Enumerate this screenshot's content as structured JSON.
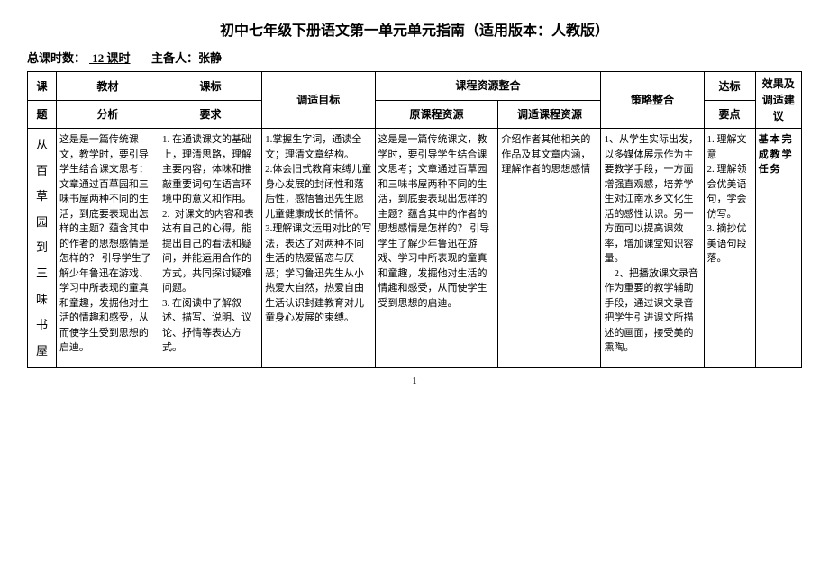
{
  "title": "初中七年级下册语文第一单元单元指南（适用版本：人教版）",
  "meta": {
    "hours_label": "总课时数：",
    "hours_value": "  12  课时",
    "author_label": "主备人：",
    "author_value": "张静"
  },
  "headers": {
    "topic_top": "课",
    "topic_bottom": "题",
    "analysis_top": "教材",
    "analysis_bottom": "分析",
    "standard_top": "课标",
    "standard_bottom": "要求",
    "goal": "调适目标",
    "resource_group": "课程资源整合",
    "orig_resource": "原课程资源",
    "adapt_resource": "调适课程资源",
    "strategy": "策略整合",
    "points_top": "达标",
    "points_bottom": "要点",
    "effect": "效果及调适建议"
  },
  "row": {
    "topic": "从百草园到三味书屋",
    "analysis": "这是是一篇传统课文，教学时，要引导学生结合课文思考：文章通过百草园和三味书屋两种不同的生活，到底要表现出怎样的主题？蕴含其中的作者的思想感情是怎样的？ 引导学生了解少年鲁迅在游戏、学习中所表现的童真和童趣，发掘他对生活的情趣和感受，从而使学生受到思想的启迪。",
    "standard": "1. 在通读课文的基础上，理清思路，理解主要内容，体味和推敲重要词句在语言环境中的意义和作用。\n2.  对课文的内容和表达有自己的心得，能提出自己的看法和疑问，并能运用合作的方式，共同探讨疑难问题。\n3. 在阅读中了解叙述、描写、说明、议论、抒情等表达方式。",
    "goal": "1.掌握生字词，通读全文；理清文章结构。\n2.体会旧式教育束缚儿童身心发展的封闭性和落后性，感悟鲁迅先生愿儿童健康成长的情怀。\n3.理解课文运用对比的写法，表达了对两种不同生活的热爱留恋与厌恶；学习鲁迅先生从小热爱大自然，热爱自由生活认识封建教育对儿童身心发展的束缚。",
    "orig_resource": "这是是一篇传统课文，教学时，要引导学生结合课文思考；文章通过百草园和三味书屋两种不同的生活，到底要表现出怎样的主题？蕴含其中的作者的思想感情是怎样的？ 引导学生了解少年鲁迅在游戏、学习中所表现的童真和童趣，发掘他对生活的情趣和感受，从而使学生受到思想的启迪。",
    "adapt_resource": "介绍作者其他相关的作品及其文章内涵，理解作者的思想感情",
    "strategy": "1、从学生实际出发，以多媒体展示作为主要教学手段，一方面增强直观感，培养学生对江南水乡文化生活的感性认识。另一方面可以提高课效率，增加课堂知识容量。\n    2、把播放课文录音作为重要的教学辅助手段，通过课文录音把学生引进课文所描述的画面，接受美的熏陶。",
    "points": "1. 理解文意\n2. 理解领会优美语句，学会仿写。\n3. 摘抄优美语句段落。",
    "effect": "基本完成教学任务"
  },
  "page_number": "1"
}
